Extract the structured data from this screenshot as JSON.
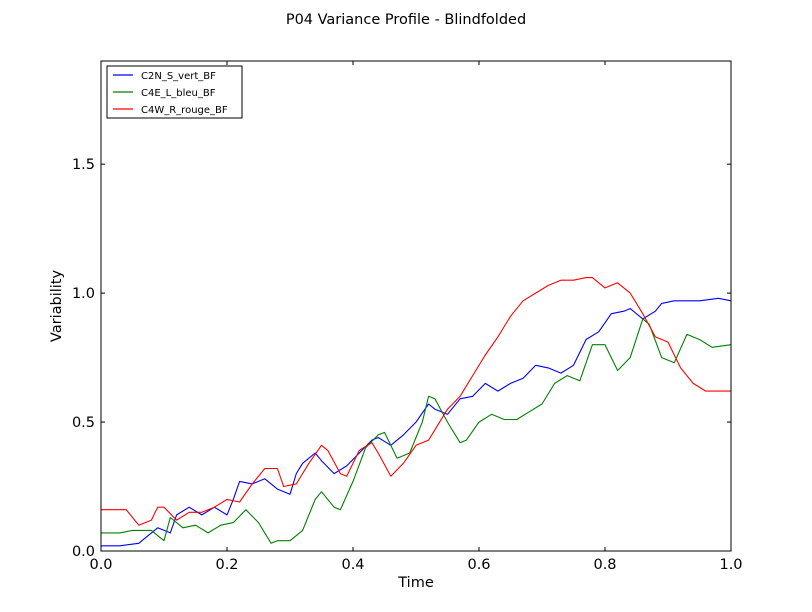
{
  "chart_data": {
    "type": "line",
    "title": "P04 Variance Profile - Blindfolded",
    "xlabel": "Time",
    "ylabel": "Variability",
    "xlim": [
      0.0,
      1.0
    ],
    "ylim": [
      0.0,
      1.9
    ],
    "xticks": [
      0.0,
      0.2,
      0.4,
      0.6,
      0.8,
      1.0
    ],
    "xtick_labels": [
      "0.0",
      "0.2",
      "0.4",
      "0.6",
      "0.8",
      "1.0"
    ],
    "yticks": [
      0.0,
      0.5,
      1.0,
      1.5
    ],
    "ytick_labels": [
      "0.0",
      "0.5",
      "1.0",
      "1.5"
    ],
    "grid": false,
    "legend_position": "top-left",
    "series": [
      {
        "name": "C2N_S_vert_BF",
        "color": "#0000ff",
        "x": [
          0.0,
          0.03,
          0.06,
          0.07,
          0.09,
          0.11,
          0.12,
          0.14,
          0.16,
          0.18,
          0.2,
          0.21,
          0.22,
          0.24,
          0.26,
          0.28,
          0.3,
          0.31,
          0.32,
          0.34,
          0.35,
          0.37,
          0.39,
          0.41,
          0.43,
          0.44,
          0.46,
          0.48,
          0.5,
          0.52,
          0.53,
          0.55,
          0.57,
          0.59,
          0.61,
          0.63,
          0.65,
          0.67,
          0.69,
          0.71,
          0.73,
          0.75,
          0.77,
          0.79,
          0.81,
          0.83,
          0.84,
          0.86,
          0.88,
          0.89,
          0.91,
          0.95,
          0.98,
          1.0
        ],
        "y": [
          0.02,
          0.02,
          0.03,
          0.05,
          0.09,
          0.07,
          0.14,
          0.17,
          0.14,
          0.17,
          0.14,
          0.2,
          0.27,
          0.26,
          0.28,
          0.24,
          0.22,
          0.3,
          0.34,
          0.38,
          0.35,
          0.3,
          0.33,
          0.38,
          0.43,
          0.44,
          0.41,
          0.45,
          0.5,
          0.57,
          0.55,
          0.53,
          0.59,
          0.6,
          0.65,
          0.62,
          0.65,
          0.67,
          0.72,
          0.71,
          0.69,
          0.72,
          0.82,
          0.85,
          0.92,
          0.93,
          0.94,
          0.9,
          0.93,
          0.96,
          0.97,
          0.97,
          0.98,
          0.97
        ]
      },
      {
        "name": "C4E_L_bleu_BF",
        "color": "#008000",
        "x": [
          0.0,
          0.03,
          0.05,
          0.08,
          0.1,
          0.11,
          0.13,
          0.15,
          0.17,
          0.19,
          0.21,
          0.23,
          0.25,
          0.27,
          0.28,
          0.3,
          0.32,
          0.34,
          0.35,
          0.37,
          0.38,
          0.4,
          0.42,
          0.44,
          0.45,
          0.47,
          0.49,
          0.51,
          0.52,
          0.53,
          0.55,
          0.57,
          0.58,
          0.6,
          0.62,
          0.64,
          0.66,
          0.68,
          0.7,
          0.72,
          0.74,
          0.76,
          0.78,
          0.8,
          0.82,
          0.84,
          0.86,
          0.87,
          0.89,
          0.91,
          0.93,
          0.95,
          0.97,
          1.0
        ],
        "y": [
          0.07,
          0.07,
          0.08,
          0.08,
          0.04,
          0.13,
          0.09,
          0.1,
          0.07,
          0.1,
          0.11,
          0.16,
          0.11,
          0.03,
          0.04,
          0.04,
          0.08,
          0.2,
          0.23,
          0.17,
          0.16,
          0.27,
          0.4,
          0.45,
          0.46,
          0.36,
          0.38,
          0.5,
          0.6,
          0.59,
          0.5,
          0.42,
          0.43,
          0.5,
          0.53,
          0.51,
          0.51,
          0.54,
          0.57,
          0.65,
          0.68,
          0.66,
          0.8,
          0.8,
          0.7,
          0.75,
          0.9,
          0.88,
          0.75,
          0.73,
          0.84,
          0.82,
          0.79,
          0.8
        ]
      },
      {
        "name": "C4W_R_rouge_BF",
        "color": "#ff0000",
        "x": [
          0.0,
          0.02,
          0.04,
          0.06,
          0.08,
          0.09,
          0.1,
          0.12,
          0.14,
          0.16,
          0.18,
          0.2,
          0.22,
          0.24,
          0.26,
          0.28,
          0.29,
          0.31,
          0.33,
          0.35,
          0.36,
          0.38,
          0.39,
          0.41,
          0.43,
          0.44,
          0.46,
          0.48,
          0.5,
          0.52,
          0.53,
          0.55,
          0.57,
          0.59,
          0.61,
          0.63,
          0.65,
          0.67,
          0.69,
          0.71,
          0.73,
          0.75,
          0.77,
          0.78,
          0.8,
          0.82,
          0.84,
          0.86,
          0.88,
          0.9,
          0.92,
          0.94,
          0.96,
          0.98,
          1.0
        ],
        "y": [
          0.16,
          0.16,
          0.16,
          0.1,
          0.12,
          0.17,
          0.17,
          0.12,
          0.15,
          0.15,
          0.17,
          0.2,
          0.19,
          0.26,
          0.32,
          0.32,
          0.25,
          0.26,
          0.34,
          0.41,
          0.39,
          0.3,
          0.29,
          0.39,
          0.42,
          0.38,
          0.29,
          0.34,
          0.41,
          0.43,
          0.47,
          0.55,
          0.6,
          0.68,
          0.76,
          0.83,
          0.91,
          0.97,
          1.0,
          1.03,
          1.05,
          1.05,
          1.06,
          1.06,
          1.02,
          1.04,
          1.0,
          0.92,
          0.83,
          0.81,
          0.71,
          0.65,
          0.62,
          0.62,
          0.62
        ]
      }
    ]
  }
}
